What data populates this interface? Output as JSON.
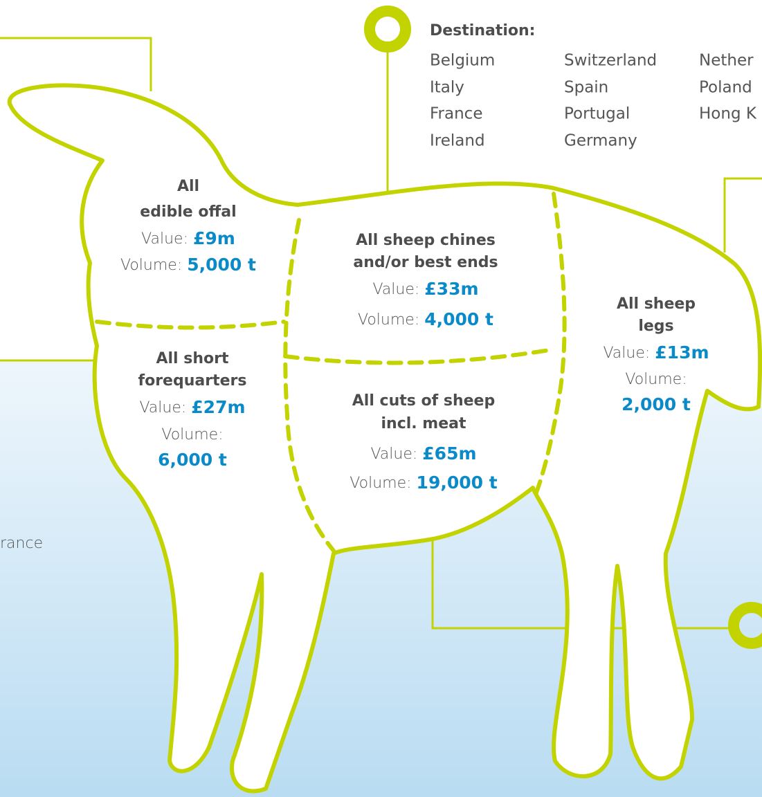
{
  "destination": {
    "title": "Destination:",
    "columns": [
      [
        "Belgium",
        "Italy",
        "France",
        "Ireland"
      ],
      [
        "Switzerland",
        "Spain",
        "Portugal",
        "Germany"
      ],
      [
        "Nether",
        "Poland",
        "Hong K"
      ]
    ]
  },
  "fragment": "rance",
  "value_label": "Value:",
  "volume_label": "Volume:",
  "cuts": [
    {
      "name": [
        "All",
        "edible offal"
      ],
      "value": "£9m",
      "volume": "5,000 t"
    },
    {
      "name": [
        "All sheep chines",
        "and/or best ends"
      ],
      "value": "£33m",
      "volume": "4,000 t"
    },
    {
      "name": [
        "All sheep",
        "legs"
      ],
      "value": "£13m",
      "volume": "2,000 t"
    },
    {
      "name": [
        "All short",
        "forequarters"
      ],
      "value": "£27m",
      "volume": "6,000 t"
    },
    {
      "name": [
        "All cuts of sheep",
        "incl. meat"
      ],
      "value": "£65m",
      "volume": "19,000 t"
    }
  ]
}
